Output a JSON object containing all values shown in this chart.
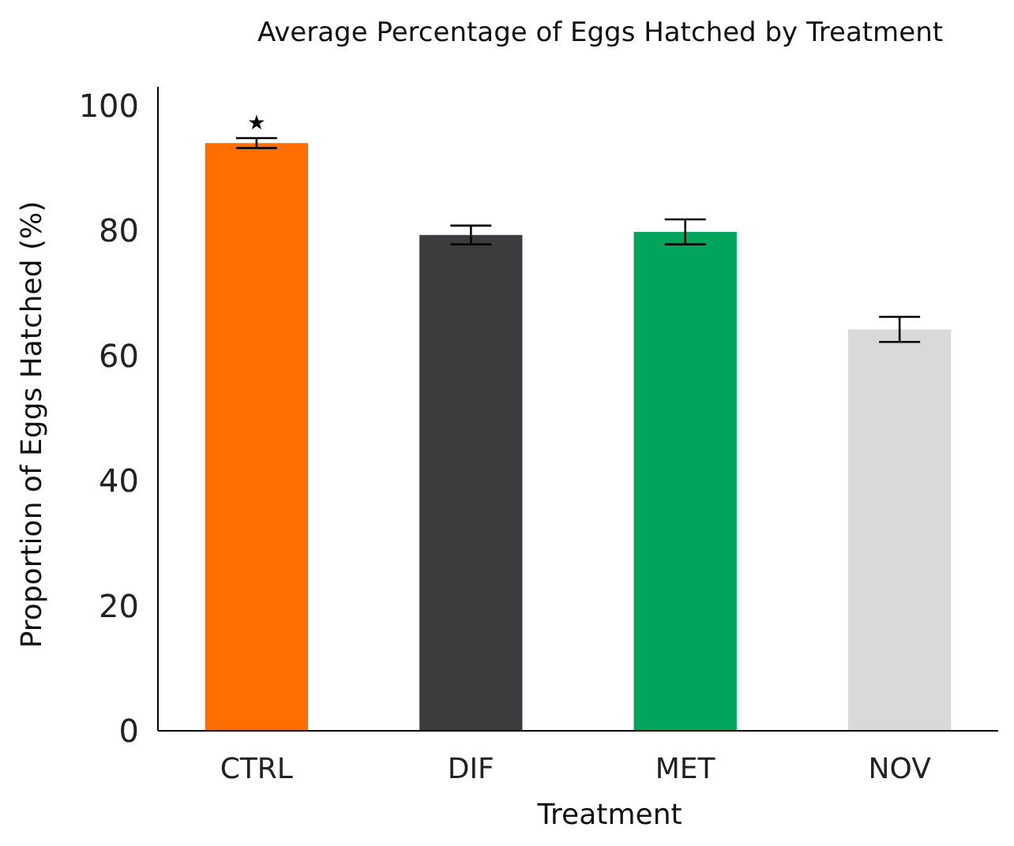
{
  "chart_data": {
    "type": "bar",
    "title": "Average Percentage of Eggs Hatched by Treatment",
    "xlabel": "Treatment",
    "ylabel": "Proportion of Eggs Hatched (%)",
    "categories": [
      "CTRL",
      "DIF",
      "MET",
      "NOV"
    ],
    "values": [
      94.0,
      79.3,
      79.8,
      64.2
    ],
    "colors": [
      "#ff6e00",
      "#3b3c3e",
      "#00a55c",
      "#d9d9d9"
    ],
    "errors": [
      0.8,
      1.5,
      2,
      2
    ],
    "annotations": [
      "★"
    ],
    "ylim": [
      0,
      103
    ],
    "yticks": [
      0,
      20,
      40,
      60,
      80,
      100
    ],
    "grid": false
  }
}
